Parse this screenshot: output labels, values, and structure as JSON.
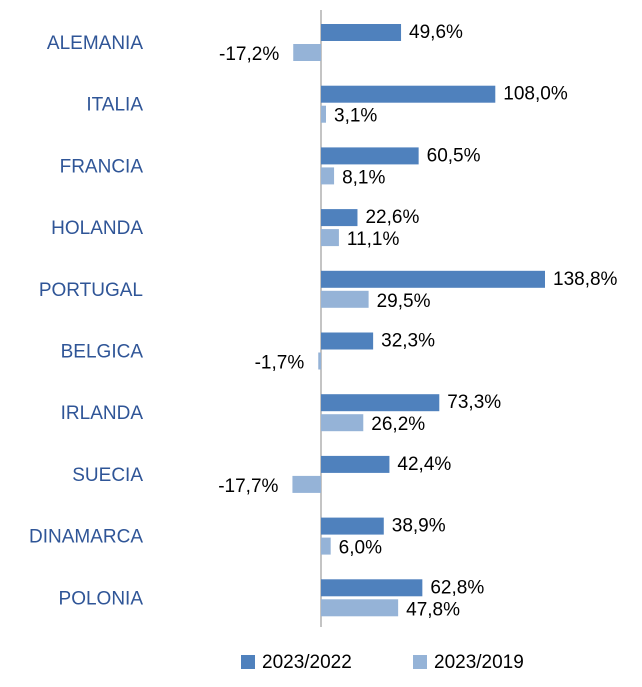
{
  "chart_data": {
    "type": "bar",
    "orientation": "horizontal",
    "categories": [
      "ALEMANIA",
      "ITALIA",
      "FRANCIA",
      "HOLANDA",
      "PORTUGAL",
      "BELGICA",
      "IRLANDA",
      "SUECIA",
      "DINAMARCA",
      "POLONIA"
    ],
    "series": [
      {
        "name": "2023/2022",
        "color": "#4f81bd",
        "values": [
          49.6,
          108.0,
          60.5,
          22.6,
          138.8,
          32.3,
          73.3,
          42.4,
          38.9,
          62.8
        ],
        "value_labels": [
          "49,6%",
          "108,0%",
          "60,5%",
          "22,6%",
          "138,8%",
          "32,3%",
          "73,3%",
          "42,4%",
          "38,9%",
          "62,8%"
        ]
      },
      {
        "name": "2023/2019",
        "color": "#95b3d7",
        "values": [
          -17.2,
          3.1,
          8.1,
          11.1,
          29.5,
          -1.7,
          26.2,
          -17.7,
          6.0,
          47.8
        ],
        "value_labels": [
          "-17,2%",
          "3,1%",
          "8,1%",
          "11,1%",
          "29,5%",
          "-1,7%",
          "26,2%",
          "-17,7%",
          "6,0%",
          "47,8%"
        ]
      }
    ],
    "legend": "bottom"
  }
}
